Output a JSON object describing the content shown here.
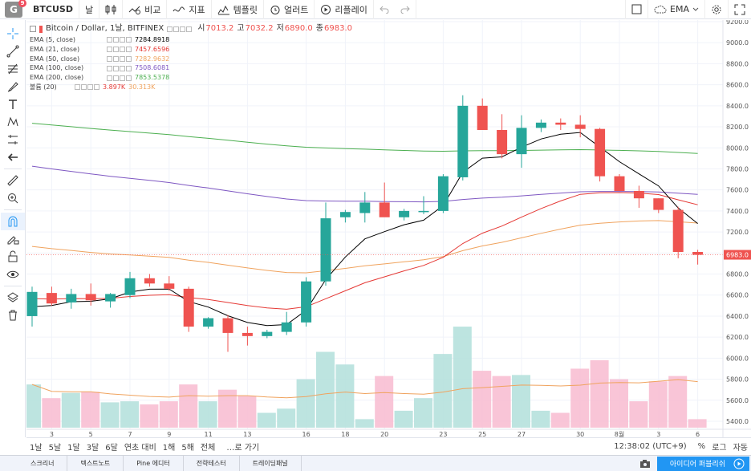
{
  "topbar": {
    "logo_letter": "G",
    "logo_badge": "9",
    "symbol": "BTCUSD",
    "interval": "날",
    "compare_label": "비교",
    "indicators_label": "지표",
    "templates_label": "템플릿",
    "alert_label": "얼러트",
    "replay_label": "리플레이",
    "ema_label": "EMA"
  },
  "legend": {
    "title": "Bitcoin / Dollar, 1날, BITFINEX",
    "o_label": "시",
    "o_value": "7013.2",
    "h_label": "고",
    "h_value": "7032.2",
    "l_label": "저",
    "l_value": "6890.0",
    "c_label": "종",
    "c_value": "6983.0",
    "rows": [
      {
        "name": "EMA (5, close)",
        "value": "7284.8918",
        "color": "#000000"
      },
      {
        "name": "EMA (21, close)",
        "value": "7457.6596",
        "color": "#e53935"
      },
      {
        "name": "EMA (50, close)",
        "value": "7282.9632",
        "color": "#f0a35e"
      },
      {
        "name": "EMA (100, close)",
        "value": "7508.6081",
        "color": "#7e57c2"
      },
      {
        "name": "EMA (200, close)",
        "value": "7853.5378",
        "color": "#4caf50"
      }
    ],
    "volume": {
      "name": "볼륨 (20)",
      "value1": "3.897K",
      "value2": "30.313K",
      "color1": "#e53935",
      "color2": "#f0a35e"
    }
  },
  "price_axis": {
    "ticks": [
      "9200.0",
      "9000.0",
      "8800.0",
      "8600.0",
      "8400.0",
      "8200.0",
      "8000.0",
      "7800.0",
      "7600.0",
      "7400.0",
      "7200.0",
      "7000.0",
      "6800.0",
      "6600.0",
      "6400.0",
      "6200.0",
      "6000.0",
      "5800.0",
      "5600.0",
      "5400.0"
    ],
    "last_label": "6983.0"
  },
  "time_axis": {
    "labels": [
      "3",
      "5",
      "7",
      "9",
      "11",
      "13",
      "16",
      "18",
      "20",
      "23",
      "25",
      "27",
      "30",
      "8월",
      "3",
      "6"
    ]
  },
  "colors": {
    "up": "#26a69a",
    "down": "#ef5350",
    "up_vol": "#b2dfdb",
    "down_vol": "#f8bbd0",
    "grid": "#f0f3fa"
  },
  "chart_data": {
    "type": "candlestick",
    "candles": [
      {
        "o": 6400,
        "h": 6680,
        "l": 6300,
        "c": 6630
      },
      {
        "o": 6620,
        "h": 6680,
        "l": 6500,
        "c": 6520
      },
      {
        "o": 6530,
        "h": 6660,
        "l": 6470,
        "c": 6610
      },
      {
        "o": 6610,
        "h": 6710,
        "l": 6500,
        "c": 6550
      },
      {
        "o": 6540,
        "h": 6620,
        "l": 6480,
        "c": 6610
      },
      {
        "o": 6600,
        "h": 6820,
        "l": 6570,
        "c": 6760
      },
      {
        "o": 6760,
        "h": 6800,
        "l": 6680,
        "c": 6710
      },
      {
        "o": 6710,
        "h": 6780,
        "l": 6640,
        "c": 6660
      },
      {
        "o": 6660,
        "h": 6680,
        "l": 6250,
        "c": 6300
      },
      {
        "o": 6300,
        "h": 6390,
        "l": 6280,
        "c": 6380
      },
      {
        "o": 6380,
        "h": 6410,
        "l": 6060,
        "c": 6240
      },
      {
        "o": 6240,
        "h": 6300,
        "l": 6120,
        "c": 6210
      },
      {
        "o": 6210,
        "h": 6270,
        "l": 6190,
        "c": 6250
      },
      {
        "o": 6250,
        "h": 6440,
        "l": 6220,
        "c": 6340
      },
      {
        "o": 6340,
        "h": 6770,
        "l": 6300,
        "c": 6730
      },
      {
        "o": 6730,
        "h": 7480,
        "l": 6690,
        "c": 7330
      },
      {
        "o": 7340,
        "h": 7410,
        "l": 7290,
        "c": 7390
      },
      {
        "o": 7380,
        "h": 7580,
        "l": 7290,
        "c": 7480
      },
      {
        "o": 7480,
        "h": 7670,
        "l": 7350,
        "c": 7340
      },
      {
        "o": 7340,
        "h": 7420,
        "l": 7310,
        "c": 7400
      },
      {
        "o": 7400,
        "h": 7540,
        "l": 7370,
        "c": 7400
      },
      {
        "o": 7400,
        "h": 7750,
        "l": 7380,
        "c": 7730
      },
      {
        "o": 7720,
        "h": 8500,
        "l": 7690,
        "c": 8400
      },
      {
        "o": 8400,
        "h": 8470,
        "l": 8170,
        "c": 8170
      },
      {
        "o": 8170,
        "h": 8320,
        "l": 7900,
        "c": 7940
      },
      {
        "o": 7940,
        "h": 8310,
        "l": 7810,
        "c": 8190
      },
      {
        "o": 8190,
        "h": 8270,
        "l": 8150,
        "c": 8240
      },
      {
        "o": 8240,
        "h": 8280,
        "l": 8170,
        "c": 8220
      },
      {
        "o": 8220,
        "h": 8310,
        "l": 8100,
        "c": 8180
      },
      {
        "o": 8180,
        "h": 8190,
        "l": 7680,
        "c": 7730
      },
      {
        "o": 7730,
        "h": 7750,
        "l": 7590,
        "c": 7590
      },
      {
        "o": 7590,
        "h": 7640,
        "l": 7430,
        "c": 7520
      },
      {
        "o": 7520,
        "h": 7520,
        "l": 7380,
        "c": 7410
      },
      {
        "o": 7410,
        "h": 7440,
        "l": 6950,
        "c": 7010
      },
      {
        "o": 7010,
        "h": 7030,
        "l": 6890,
        "c": 6983
      }
    ],
    "volumes": [
      5750,
      5620,
      5670,
      5680,
      5580,
      5590,
      5560,
      5590,
      5750,
      5590,
      5700,
      5640,
      5480,
      5520,
      5800,
      6060,
      5940,
      5420,
      5830,
      5500,
      5620,
      6040,
      6300,
      5880,
      5830,
      5840,
      5500,
      5480,
      5900,
      5980,
      5800,
      5590,
      5780,
      5830,
      5420
    ]
  },
  "bottombar": {
    "ranges": [
      "1날",
      "5날",
      "1달",
      "3달",
      "6달",
      "연초 대비",
      "1해",
      "5해",
      "전체"
    ],
    "goto": "…로 가기",
    "time": "12:38:02 (UTC+9)",
    "percent": "%",
    "log": "로그",
    "auto": "자동"
  },
  "footer": {
    "tabs": [
      "스크리너",
      "텍스트노트",
      "Pine 에디터",
      "전략테스터",
      "트레이딩패널"
    ],
    "idea_button": "아이디어 퍼블리쉬"
  }
}
